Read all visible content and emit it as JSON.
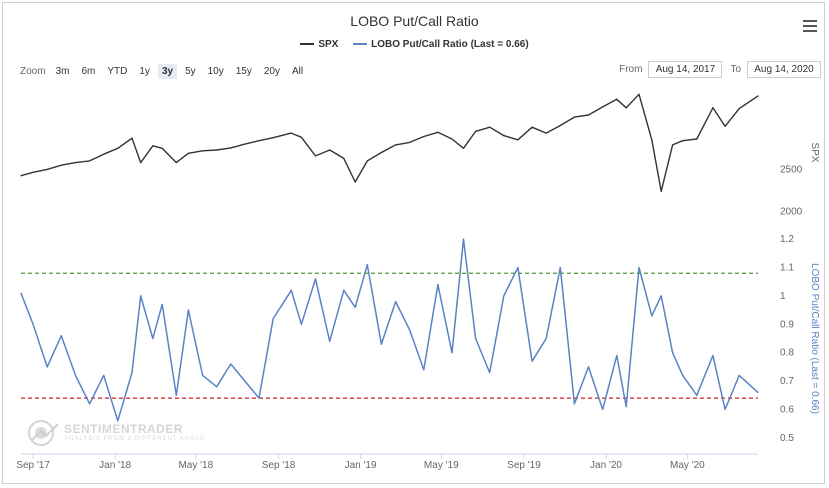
{
  "title": "LOBO Put/Call Ratio",
  "legend": [
    {
      "name": "SPX",
      "color": "#333333"
    },
    {
      "name": "LOBO Put/Call Ratio (Last = 0.66)",
      "color": "#5b82c4"
    }
  ],
  "menu_icon": "hamburger-menu-icon",
  "zoom": {
    "label": "Zoom",
    "buttons": [
      "3m",
      "6m",
      "YTD",
      "1y",
      "3y",
      "5y",
      "10y",
      "15y",
      "20y",
      "All"
    ],
    "active": "3y"
  },
  "range": {
    "from_label": "From",
    "from_value": "Aug 14, 2017",
    "to_label": "To",
    "to_value": "Aug 14, 2020"
  },
  "watermark": {
    "name": "SENTIMENTRADER",
    "sub": "ANALYSIS FROM A DIFFERENT ANGLE"
  },
  "chart_data": [
    {
      "type": "line",
      "name": "SPX",
      "ylabel": "SPX",
      "yticks": [
        2000,
        2500
      ],
      "ylim": [
        1900,
        3500
      ],
      "color": "#333333",
      "x": [
        "2017-08-14",
        "2017-09-01",
        "2017-09-22",
        "2017-10-13",
        "2017-11-03",
        "2017-11-24",
        "2017-12-15",
        "2018-01-05",
        "2018-01-26",
        "2018-02-08",
        "2018-02-26",
        "2018-03-12",
        "2018-04-02",
        "2018-04-20",
        "2018-05-11",
        "2018-06-01",
        "2018-06-22",
        "2018-07-13",
        "2018-08-03",
        "2018-08-24",
        "2018-09-20",
        "2018-10-05",
        "2018-10-26",
        "2018-11-16",
        "2018-12-07",
        "2018-12-24",
        "2019-01-11",
        "2019-02-01",
        "2019-02-22",
        "2019-03-15",
        "2019-04-05",
        "2019-04-26",
        "2019-05-17",
        "2019-06-03",
        "2019-06-21",
        "2019-07-12",
        "2019-08-02",
        "2019-08-23",
        "2019-09-13",
        "2019-10-04",
        "2019-10-25",
        "2019-11-15",
        "2019-12-06",
        "2019-12-27",
        "2020-01-17",
        "2020-01-31",
        "2020-02-19",
        "2020-03-09",
        "2020-03-23",
        "2020-04-09",
        "2020-04-24",
        "2020-05-15",
        "2020-06-08",
        "2020-06-26",
        "2020-07-17",
        "2020-08-14"
      ],
      "values": [
        2425,
        2465,
        2500,
        2550,
        2580,
        2600,
        2680,
        2750,
        2870,
        2580,
        2780,
        2750,
        2580,
        2690,
        2720,
        2730,
        2755,
        2800,
        2840,
        2875,
        2930,
        2880,
        2660,
        2730,
        2630,
        2350,
        2600,
        2700,
        2790,
        2820,
        2890,
        2940,
        2860,
        2750,
        2950,
        3000,
        2900,
        2850,
        3000,
        2930,
        3020,
        3120,
        3145,
        3240,
        3330,
        3230,
        3390,
        2850,
        2240,
        2790,
        2840,
        2860,
        3230,
        3010,
        3220,
        3370
      ]
    },
    {
      "type": "line",
      "name": "LOBO Put/Call Ratio",
      "ylabel": "LOBO Put/Call Ratio (Last = 0.66)",
      "yticks": [
        0.5,
        0.6,
        0.7,
        0.8,
        0.9,
        1.0,
        1.1,
        1.2
      ],
      "ylim": [
        0.45,
        1.25
      ],
      "color": "#5b82c4",
      "reference_lines": [
        {
          "value": 1.08,
          "color": "#4e9a3a"
        },
        {
          "value": 0.64,
          "color": "#cc2222"
        }
      ],
      "x": [
        "2017-08-14",
        "2017-09-01",
        "2017-09-22",
        "2017-10-13",
        "2017-11-03",
        "2017-11-24",
        "2017-12-15",
        "2018-01-05",
        "2018-01-26",
        "2018-02-08",
        "2018-02-26",
        "2018-03-12",
        "2018-04-02",
        "2018-04-20",
        "2018-05-11",
        "2018-06-01",
        "2018-06-22",
        "2018-07-13",
        "2018-08-03",
        "2018-08-24",
        "2018-09-20",
        "2018-10-05",
        "2018-10-26",
        "2018-11-16",
        "2018-12-07",
        "2018-12-24",
        "2019-01-11",
        "2019-02-01",
        "2019-02-22",
        "2019-03-15",
        "2019-04-05",
        "2019-04-26",
        "2019-05-17",
        "2019-06-03",
        "2019-06-21",
        "2019-07-12",
        "2019-08-02",
        "2019-08-23",
        "2019-09-13",
        "2019-10-04",
        "2019-10-25",
        "2019-11-15",
        "2019-12-06",
        "2019-12-27",
        "2020-01-17",
        "2020-01-31",
        "2020-02-19",
        "2020-03-09",
        "2020-03-23",
        "2020-04-09",
        "2020-04-24",
        "2020-05-15",
        "2020-06-08",
        "2020-06-26",
        "2020-07-17",
        "2020-08-14"
      ],
      "values": [
        1.01,
        0.9,
        0.75,
        0.86,
        0.72,
        0.62,
        0.72,
        0.56,
        0.73,
        1.0,
        0.85,
        0.97,
        0.65,
        0.95,
        0.72,
        0.68,
        0.76,
        0.7,
        0.64,
        0.92,
        1.02,
        0.9,
        1.06,
        0.84,
        1.02,
        0.96,
        1.11,
        0.83,
        0.98,
        0.88,
        0.74,
        1.04,
        0.8,
        1.2,
        0.85,
        0.73,
        1.0,
        1.1,
        0.77,
        0.85,
        1.1,
        0.62,
        0.75,
        0.6,
        0.79,
        0.61,
        1.1,
        0.93,
        1.0,
        0.8,
        0.72,
        0.65,
        0.79,
        0.6,
        0.72,
        0.66
      ]
    }
  ],
  "x_axis": {
    "ticks": [
      {
        "label": "Sep '17",
        "date": "2017-09-01"
      },
      {
        "label": "Jan '18",
        "date": "2018-01-01"
      },
      {
        "label": "May '18",
        "date": "2018-05-01"
      },
      {
        "label": "Sep '18",
        "date": "2018-09-01"
      },
      {
        "label": "Jan '19",
        "date": "2019-01-01"
      },
      {
        "label": "May '19",
        "date": "2019-05-01"
      },
      {
        "label": "Sep '19",
        "date": "2019-09-01"
      },
      {
        "label": "Jan '20",
        "date": "2020-01-01"
      },
      {
        "label": "May '20",
        "date": "2020-05-01"
      }
    ],
    "range": [
      "2017-08-14",
      "2020-08-14"
    ]
  }
}
